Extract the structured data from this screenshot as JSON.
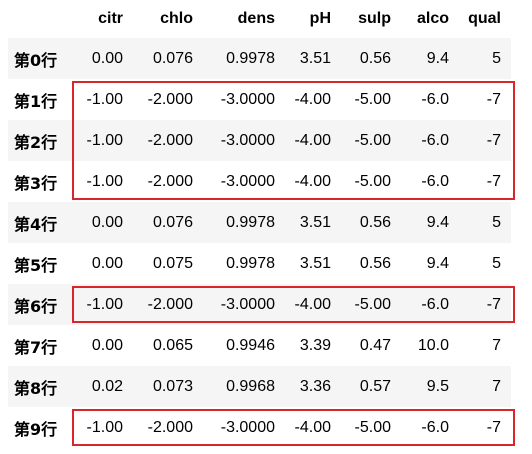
{
  "table": {
    "columns": [
      "citr",
      "chlo",
      "dens",
      "pH",
      "sulp",
      "alco",
      "qual"
    ],
    "rows": [
      {
        "label": "第0行",
        "cells": [
          "0.00",
          "0.076",
          "0.9978",
          "3.51",
          "0.56",
          "9.4",
          "5"
        ]
      },
      {
        "label": "第1行",
        "cells": [
          "-1.00",
          "-2.000",
          "-3.0000",
          "-4.00",
          "-5.00",
          "-6.0",
          "-7"
        ]
      },
      {
        "label": "第2行",
        "cells": [
          "-1.00",
          "-2.000",
          "-3.0000",
          "-4.00",
          "-5.00",
          "-6.0",
          "-7"
        ]
      },
      {
        "label": "第3行",
        "cells": [
          "-1.00",
          "-2.000",
          "-3.0000",
          "-4.00",
          "-5.00",
          "-6.0",
          "-7"
        ]
      },
      {
        "label": "第4行",
        "cells": [
          "0.00",
          "0.076",
          "0.9978",
          "3.51",
          "0.56",
          "9.4",
          "5"
        ]
      },
      {
        "label": "第5行",
        "cells": [
          "0.00",
          "0.075",
          "0.9978",
          "3.51",
          "0.56",
          "9.4",
          "5"
        ]
      },
      {
        "label": "第6行",
        "cells": [
          "-1.00",
          "-2.000",
          "-3.0000",
          "-4.00",
          "-5.00",
          "-6.0",
          "-7"
        ]
      },
      {
        "label": "第7行",
        "cells": [
          "0.00",
          "0.065",
          "0.9946",
          "3.39",
          "0.47",
          "10.0",
          "7"
        ]
      },
      {
        "label": "第8行",
        "cells": [
          "0.02",
          "0.073",
          "0.9968",
          "3.36",
          "0.57",
          "9.5",
          "7"
        ]
      },
      {
        "label": "第9行",
        "cells": [
          "-1.00",
          "-2.000",
          "-3.0000",
          "-4.00",
          "-5.00",
          "-6.0",
          "-7"
        ]
      }
    ]
  },
  "highlight_color": "#d9262c",
  "highlights": [
    {
      "start_row": 1,
      "end_row": 3
    },
    {
      "start_row": 6,
      "end_row": 6
    },
    {
      "start_row": 9,
      "end_row": 9
    }
  ]
}
